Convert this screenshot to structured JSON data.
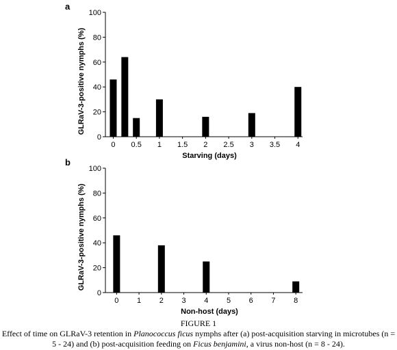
{
  "chart_data": [
    {
      "panel": "a",
      "type": "bar",
      "ylabel": "GLRaV-3-positive nymphs (%)",
      "xlabel": "Starving (days)",
      "ylim": [
        0,
        100
      ],
      "yticks": [
        0,
        20,
        40,
        60,
        80,
        100
      ],
      "xlim": [
        -0.17,
        4.1
      ],
      "xticks": [
        "0",
        "0.5",
        "1",
        "1.5",
        "2",
        "2.5",
        "3",
        "3.5",
        "4"
      ],
      "xtick_values": [
        0,
        0.5,
        1,
        1.5,
        2,
        2.5,
        3,
        3.5,
        4
      ],
      "bar_color": "#000000",
      "bars": [
        {
          "x": 0,
          "y": 46
        },
        {
          "x": 0.25,
          "y": 64
        },
        {
          "x": 0.5,
          "y": 15
        },
        {
          "x": 1,
          "y": 30
        },
        {
          "x": 2,
          "y": 16
        },
        {
          "x": 3,
          "y": 19
        },
        {
          "x": 4,
          "y": 40
        }
      ]
    },
    {
      "panel": "b",
      "type": "bar",
      "ylabel": "GLRaV-3-positive nymphs (%)",
      "xlabel": "Non-host (days)",
      "ylim": [
        0,
        100
      ],
      "yticks": [
        0,
        20,
        40,
        60,
        80,
        100
      ],
      "xlim": [
        -0.5,
        8.3
      ],
      "xticks": [
        "0",
        "1",
        "2",
        "3",
        "4",
        "5",
        "6",
        "7",
        "8"
      ],
      "xtick_values": [
        0,
        1,
        2,
        3,
        4,
        5,
        6,
        7,
        8
      ],
      "bar_color": "#000000",
      "bars": [
        {
          "x": 0,
          "y": 46
        },
        {
          "x": 2,
          "y": 38
        },
        {
          "x": 4,
          "y": 25
        },
        {
          "x": 8,
          "y": 9
        }
      ]
    }
  ],
  "caption": {
    "title": "FIGURE 1",
    "parts": [
      {
        "text": "Effect of time on GLRaV-3 retention in ",
        "italic": false
      },
      {
        "text": "Planococcus ficus",
        "italic": true
      },
      {
        "text": " nymphs after (a) post-acquisition starving in microtubes (n = 5 - 24) and (b) post-acquisition feeding on ",
        "italic": false
      },
      {
        "text": "Ficus benjamini",
        "italic": true
      },
      {
        "text": ", a virus non-host (n = 8 - 24).",
        "italic": false
      }
    ]
  }
}
